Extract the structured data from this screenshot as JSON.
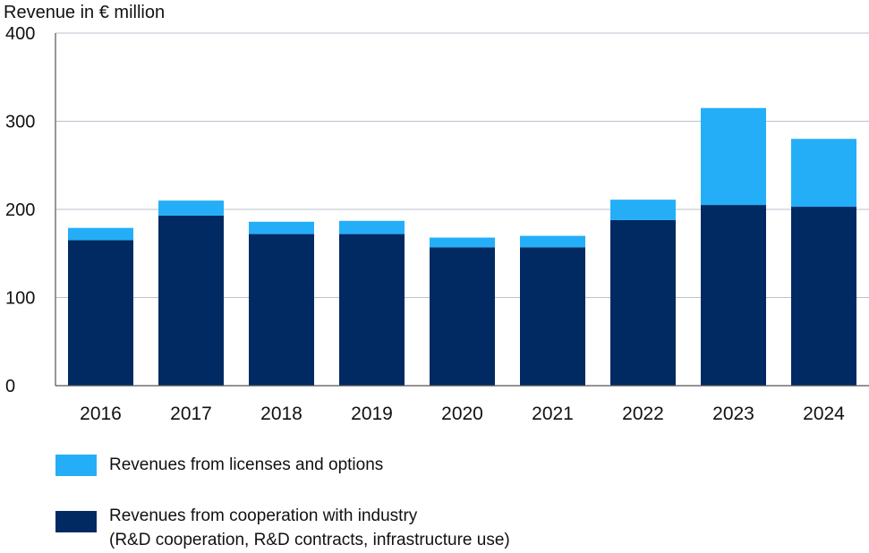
{
  "chart_data": {
    "type": "bar",
    "stacked": true,
    "ylabel": "Revenue in € million",
    "xlabel": "",
    "title": "",
    "ylim": [
      0,
      400
    ],
    "yticks": [
      0,
      100,
      200,
      300,
      400
    ],
    "grid": true,
    "legend_position": "bottom",
    "categories": [
      "2016",
      "2017",
      "2018",
      "2019",
      "2020",
      "2021",
      "2022",
      "2023",
      "2024"
    ],
    "series": [
      {
        "name": "Revenues from cooperation with industry (R&D cooperation, R&D contracts, infrastructure use)",
        "name_lines": [
          "Revenues from cooperation with industry",
          "(R&D cooperation, R&D contracts, infrastructure use)"
        ],
        "color": "#012a62",
        "values": [
          165,
          193,
          172,
          172,
          157,
          157,
          188,
          205,
          203
        ]
      },
      {
        "name": "Revenues from licenses and options",
        "name_lines": [
          "Revenues from licenses and options"
        ],
        "color": "#24aef7",
        "values": [
          14,
          17,
          14,
          15,
          11,
          13,
          23,
          110,
          77
        ]
      }
    ]
  },
  "colors": {
    "grid": "#b8c3cf",
    "axis": "#555555",
    "text": "#111111"
  }
}
